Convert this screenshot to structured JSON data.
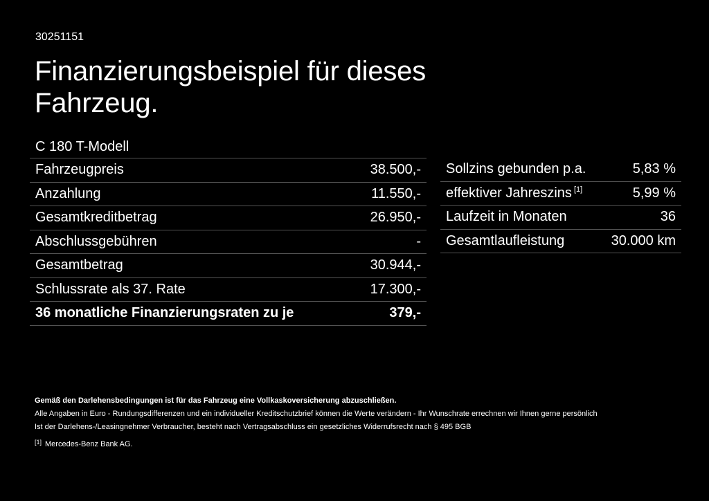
{
  "header": {
    "code": "30251151",
    "title": "Finanzierungsbeispiel für dieses Fahrzeug.",
    "model": "C 180 T-Modell"
  },
  "finance_table": {
    "rows": [
      {
        "label": "Fahrzeugpreis",
        "value": "38.500,-"
      },
      {
        "label": "Anzahlung",
        "value": "11.550,-"
      },
      {
        "label": "Gesamtkreditbetrag",
        "value": "26.950,-"
      },
      {
        "label": "Abschlussgebühren",
        "value": "-"
      },
      {
        "label": "Gesamtbetrag",
        "value": "30.944,-"
      },
      {
        "label": "Schlussrate als 37. Rate",
        "value": "17.300,-"
      },
      {
        "label": "36 monatliche Finanzierungsraten zu je",
        "value": "379,-",
        "bold": true
      }
    ]
  },
  "terms_table": {
    "rows": [
      {
        "label": "Sollzins gebunden p.a.",
        "value": "5,83 %"
      },
      {
        "label": "effektiver Jahreszins",
        "footnote": "[1]",
        "value": "5,99 %"
      },
      {
        "label": "Laufzeit in Monaten",
        "value": "36"
      },
      {
        "label": "Gesamtlaufleistung",
        "value": "30.000 km"
      }
    ]
  },
  "notes": {
    "bold_line": "Gemäß den Darlehensbedingungen ist für das Fahrzeug eine Vollkaskoversicherung abzuschließen.",
    "line_1": "Alle Angaben in Euro - Rundungsdifferenzen und ein individueller Kreditschutzbrief können die Werte verändern - Ihr Wunschrate errechnen wir Ihnen gerne persönlich",
    "line_2": "Ist der Darlehens-/Leasingnehmer Verbraucher, besteht nach Vertragsabschluss ein gesetzliches Widerrufsrecht nach § 495 BGB"
  },
  "footnote": {
    "mark": "[1]",
    "text": "Mercedes-Benz Bank AG."
  },
  "colors": {
    "background": "#000000",
    "text": "#ffffff",
    "divider": "#555555"
  }
}
